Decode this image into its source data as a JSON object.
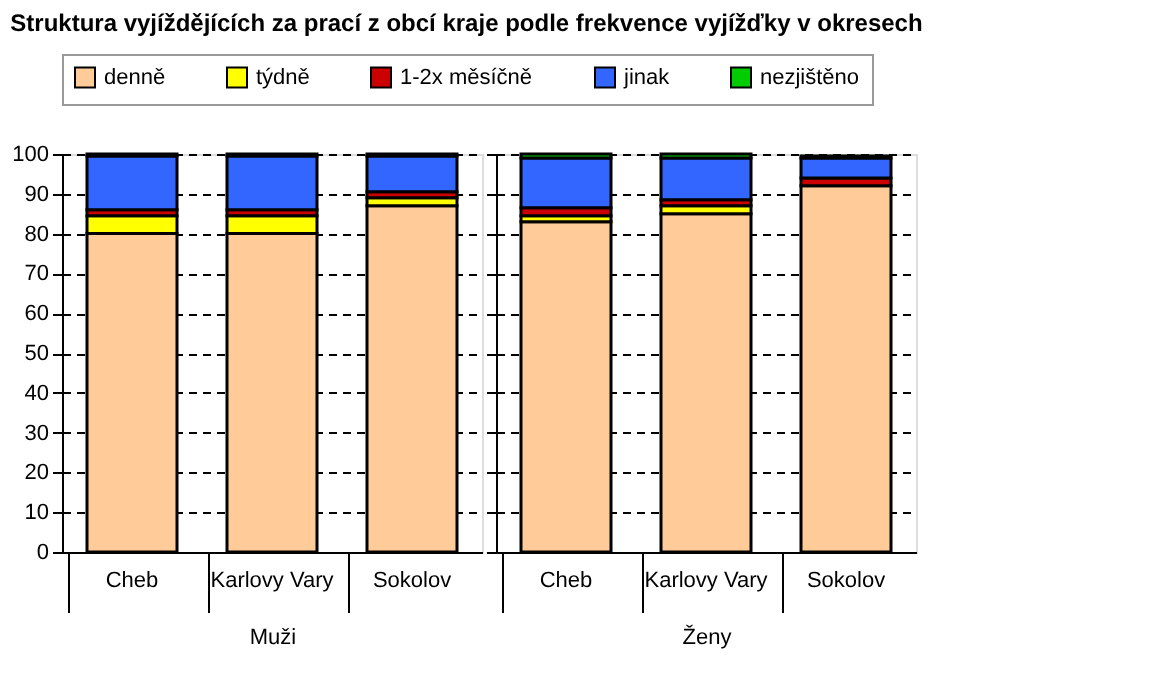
{
  "chart_data": [
    {
      "type": "bar",
      "stacked": true,
      "title": "Struktura vyjíždějících za prací z obcí kraje podle frekvence vyjížďky v okresech",
      "xlabel": "Muži",
      "categories": [
        "Cheb",
        "Karlovy Vary",
        "Sokolov"
      ],
      "ylim": [
        0,
        100
      ],
      "yticks": [
        0,
        10,
        20,
        30,
        40,
        50,
        60,
        70,
        80,
        90,
        100
      ],
      "grid": "y",
      "legend": "top",
      "series": [
        {
          "name": "denně",
          "color": "#ffcc99",
          "values": [
            80,
            80,
            87
          ]
        },
        {
          "name": "týdně",
          "color": "#ffff00",
          "values": [
            4.5,
            4.5,
            2
          ]
        },
        {
          "name": "1-2x měsíčně",
          "color": "#cc0000",
          "values": [
            1.5,
            1.5,
            1.5
          ]
        },
        {
          "name": "jinak",
          "color": "#3366ff",
          "values": [
            13.5,
            13.5,
            9
          ]
        },
        {
          "name": "nezjištěno",
          "color": "#00cc00",
          "values": [
            0.5,
            0.5,
            0.5
          ]
        }
      ]
    },
    {
      "type": "bar",
      "stacked": true,
      "xlabel": "Ženy",
      "categories": [
        "Cheb",
        "Karlovy Vary",
        "Sokolov"
      ],
      "ylim": [
        0,
        100
      ],
      "yticks": [
        0,
        10,
        20,
        30,
        40,
        50,
        60,
        70,
        80,
        90,
        100
      ],
      "grid": "y",
      "tick_labels": "x",
      "series": [
        {
          "color": "#ffcc99",
          "values": [
            83,
            85,
            92
          ]
        },
        {
          "color": "#ffff00",
          "values": [
            1.5,
            2,
            null
          ]
        },
        {
          "color": "#cc0000",
          "values": [
            2,
            1.5,
            2
          ]
        },
        {
          "color": "#3366ff",
          "values": [
            12.5,
            10.5,
            5
          ]
        },
        {
          "color": "#00cc00",
          "values": [
            1,
            1,
            0.5
          ]
        }
      ]
    }
  ]
}
